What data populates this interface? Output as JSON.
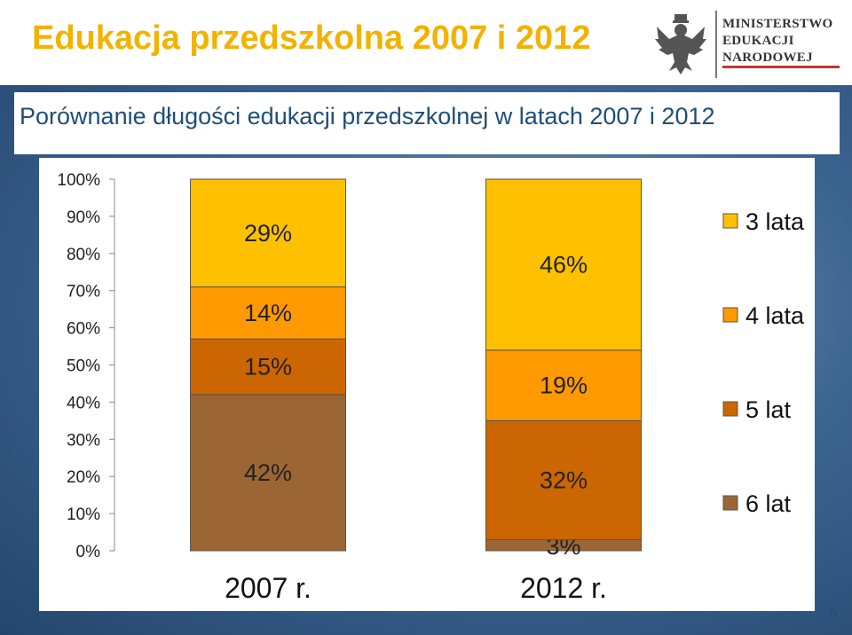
{
  "slide": {
    "title": "Edukacja przedszkolna 2007 i 2012",
    "subtitle": "Porównanie długości edukacji przedszkolnej w latach 2007 i 2012",
    "page_number": "5"
  },
  "logo": {
    "lines": [
      "MINISTERSTWO",
      "EDUKACJI",
      "NARODOWEJ"
    ],
    "accent_color": "#C0392B"
  },
  "chart_data": {
    "type": "bar",
    "stacked": true,
    "percent": true,
    "categories": [
      "2007 r.",
      "2012 r."
    ],
    "series": [
      {
        "name": "6 lat",
        "values": [
          42,
          3
        ],
        "color": "#9C6634"
      },
      {
        "name": "5 lat",
        "values": [
          15,
          32
        ],
        "color": "#CC6600"
      },
      {
        "name": "4 lata",
        "values": [
          14,
          19
        ],
        "color": "#FF9900"
      },
      {
        "name": "3 lata",
        "values": [
          29,
          46
        ],
        "color": "#FFC000"
      }
    ],
    "data_labels": [
      [
        "42%",
        "3%"
      ],
      [
        "15%",
        "32%"
      ],
      [
        "14%",
        "19%"
      ],
      [
        "29%",
        "46%"
      ]
    ],
    "y_ticks": [
      "0%",
      "10%",
      "20%",
      "30%",
      "40%",
      "50%",
      "60%",
      "70%",
      "80%",
      "90%",
      "100%"
    ],
    "ylim": [
      0,
      100
    ],
    "legend_position": "right",
    "legend_order": [
      "3 lata",
      "4 lata",
      "5 lat",
      "6 lat"
    ],
    "grid": false
  }
}
